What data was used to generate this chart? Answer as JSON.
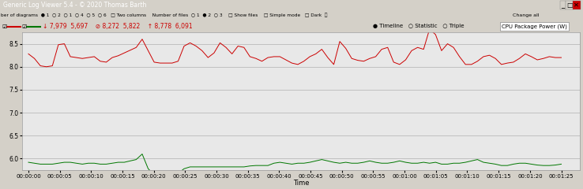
{
  "xlabel": "Time",
  "bg_color": "#e0e0e0",
  "plot_bg_color": "#e8e8e8",
  "red_color": "#cc0000",
  "green_color": "#007700",
  "ylim": [
    5.75,
    8.75
  ],
  "yticks": [
    6.0,
    6.5,
    7.0,
    7.5,
    8.0,
    8.5
  ],
  "grid_color": "#b0b0b0",
  "red_data": [
    8.28,
    8.18,
    8.02,
    8.0,
    8.02,
    8.48,
    8.5,
    8.22,
    8.2,
    8.18,
    8.2,
    8.22,
    8.12,
    8.1,
    8.2,
    8.24,
    8.3,
    8.36,
    8.42,
    8.6,
    8.35,
    8.1,
    8.08,
    8.08,
    8.08,
    8.12,
    8.45,
    8.52,
    8.45,
    8.35,
    8.2,
    8.3,
    8.52,
    8.42,
    8.28,
    8.45,
    8.42,
    8.22,
    8.18,
    8.12,
    8.2,
    8.22,
    8.22,
    8.15,
    8.08,
    8.05,
    8.12,
    8.22,
    8.28,
    8.38,
    8.2,
    8.05,
    8.55,
    8.4,
    8.18,
    8.14,
    8.12,
    8.18,
    8.22,
    8.38,
    8.42,
    8.1,
    8.05,
    8.15,
    8.35,
    8.42,
    8.38,
    8.82,
    8.7,
    8.35,
    8.5,
    8.42,
    8.22,
    8.05,
    8.05,
    8.12,
    8.22,
    8.25,
    8.18,
    8.05,
    8.08,
    8.1,
    8.18,
    8.28,
    8.22,
    8.15,
    8.18,
    8.22,
    8.2,
    8.2
  ],
  "green_data": [
    5.92,
    5.9,
    5.88,
    5.88,
    5.88,
    5.9,
    5.92,
    5.92,
    5.9,
    5.88,
    5.9,
    5.9,
    5.88,
    5.88,
    5.9,
    5.92,
    5.92,
    5.95,
    5.98,
    6.1,
    5.78,
    5.65,
    5.6,
    5.58,
    5.6,
    5.68,
    5.78,
    5.82,
    5.82,
    5.82,
    5.82,
    5.82,
    5.82,
    5.82,
    5.82,
    5.82,
    5.82,
    5.84,
    5.85,
    5.85,
    5.85,
    5.9,
    5.92,
    5.9,
    5.88,
    5.9,
    5.9,
    5.92,
    5.95,
    5.98,
    5.95,
    5.92,
    5.9,
    5.92,
    5.9,
    5.9,
    5.92,
    5.95,
    5.92,
    5.9,
    5.9,
    5.92,
    5.95,
    5.92,
    5.9,
    5.9,
    5.92,
    5.9,
    5.92,
    5.88,
    5.88,
    5.9,
    5.9,
    5.92,
    5.95,
    5.98,
    5.92,
    5.9,
    5.88,
    5.85,
    5.85,
    5.88,
    5.9,
    5.9,
    5.88,
    5.86,
    5.85,
    5.85,
    5.86,
    5.88
  ],
  "xtick_labels": [
    "00:00:00",
    "00:00:05",
    "00:00:10",
    "00:00:15",
    "00:00:20",
    "00:00:25",
    "00:00:30",
    "00:00:35",
    "00:00:40",
    "00:00:45",
    "00:00:50",
    "00:00:55",
    "00:01:00",
    "00:01:05",
    "00:01:10",
    "00:01:15",
    "00:01:20",
    "00:01:25"
  ],
  "xtick_positions": [
    0,
    5,
    10,
    15,
    20,
    25,
    30,
    35,
    40,
    45,
    50,
    55,
    60,
    65,
    70,
    75,
    80,
    85
  ],
  "titlebar_bg": "#1a3a6b",
  "titlebar_text": "Generic Log Viewer 5.4 - © 2020 Thomas Barth",
  "toolbar_bg": "#d4d0c8",
  "stats_bar_bg": "#f0f0f0",
  "outer_bg": "#d4d0c8",
  "window_border": "#808080"
}
